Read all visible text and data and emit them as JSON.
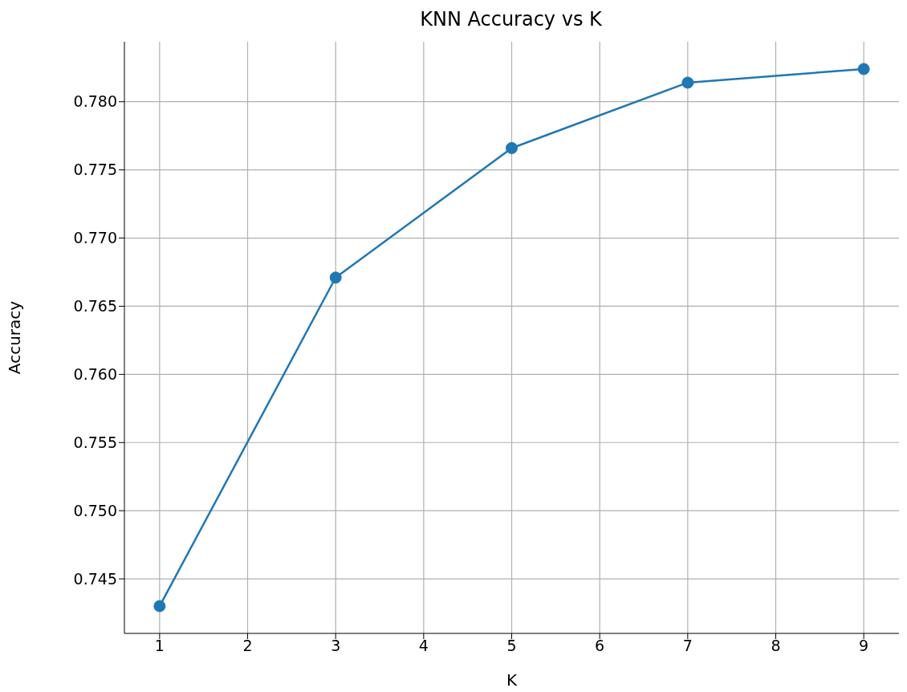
{
  "chart_data": {
    "type": "line",
    "title": "KNN Accuracy vs K",
    "xlabel": "K",
    "ylabel": "Accuracy",
    "x": [
      1,
      3,
      5,
      7,
      9
    ],
    "series": [
      {
        "color": "#1f77b4",
        "values": [
          0.743,
          0.7671,
          0.7766,
          0.7814,
          0.7824
        ]
      }
    ],
    "xlim": [
      0.6,
      9.4
    ],
    "xticks": [
      1,
      2,
      3,
      4,
      5,
      6,
      7,
      8,
      9
    ],
    "ylim": [
      0.741,
      0.7844
    ],
    "yticks": [
      {
        "value": 0.745,
        "label": "0.745"
      },
      {
        "value": 0.75,
        "label": "0.750"
      },
      {
        "value": 0.755,
        "label": "0.755"
      },
      {
        "value": 0.76,
        "label": "0.760"
      },
      {
        "value": 0.765,
        "label": "0.765"
      },
      {
        "value": 0.77,
        "label": "0.770"
      },
      {
        "value": 0.775,
        "label": "0.775"
      },
      {
        "value": 0.78,
        "label": "0.780"
      }
    ],
    "grid": true,
    "marker": "circle",
    "line_style": "solid"
  }
}
